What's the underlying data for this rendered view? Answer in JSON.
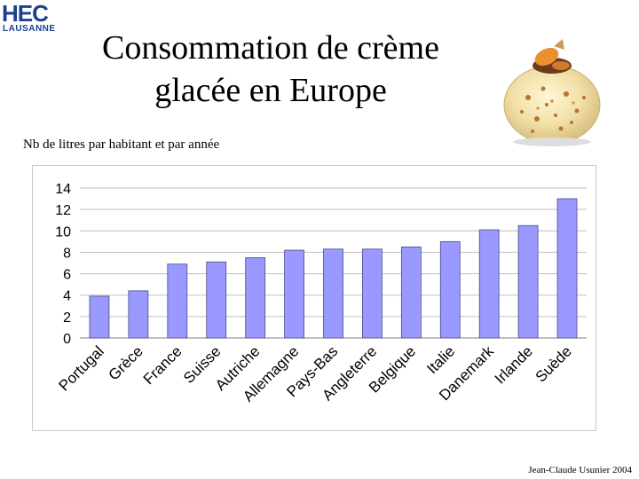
{
  "logo": {
    "name": "HEC",
    "city": "LAUSANNE"
  },
  "title_line1": "Consommation de crème",
  "title_line2": "glacée en  Europe",
  "subtitle": "Nb de litres par habitant et par année",
  "footer": "Jean-Claude Usunier 2004",
  "colors": {
    "bar": "#9999ff",
    "bar_stroke": "#4a4a8a",
    "grid": "#c0c0c0",
    "logo": "#1d3f8f"
  },
  "chart_data": {
    "type": "bar",
    "title": "",
    "xlabel": "",
    "ylabel": "",
    "categories": [
      "Portugal",
      "Grèce",
      "France",
      "Suisse",
      "Autriche",
      "Allemagne",
      "Pays-Bas",
      "Angleterre",
      "Belgique",
      "Italie",
      "Danemark",
      "Irlande",
      "Suède"
    ],
    "values": [
      3.9,
      4.4,
      6.9,
      7.1,
      7.5,
      8.2,
      8.3,
      8.3,
      8.5,
      9.0,
      10.1,
      10.5,
      13.0
    ],
    "ylim": [
      0,
      14
    ],
    "yticks": [
      0,
      2,
      4,
      6,
      8,
      10,
      12,
      14
    ],
    "grid": true,
    "legend": "none"
  }
}
